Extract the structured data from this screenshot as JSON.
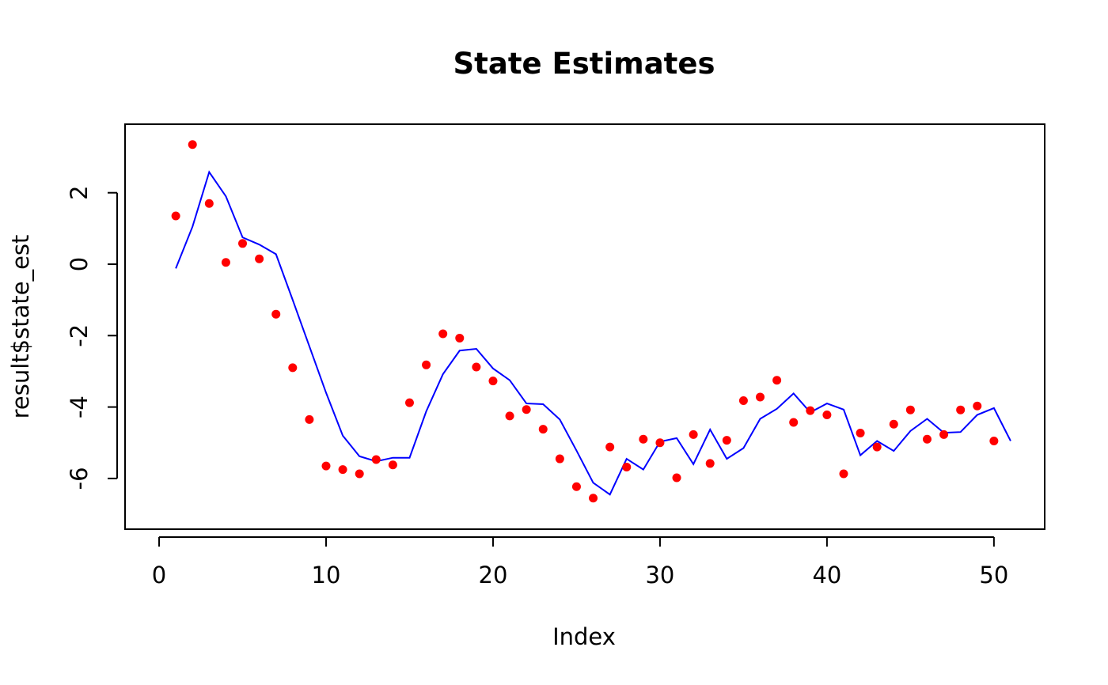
{
  "chart_data": {
    "type": "scatter",
    "title": "State Estimates",
    "xlabel": "Index",
    "ylabel": "result$state_est",
    "xlim": [
      0,
      51
    ],
    "ylim": [
      -7,
      3.5
    ],
    "x_ticks": [
      0,
      10,
      20,
      30,
      40,
      50
    ],
    "y_ticks": [
      -6,
      -4,
      -2,
      0,
      2
    ],
    "grid": false,
    "legend": "none",
    "series": [
      {
        "kind": "points",
        "color": "#ff0000",
        "x": [
          1,
          2,
          3,
          4,
          5,
          6,
          7,
          8,
          9,
          10,
          11,
          12,
          13,
          14,
          15,
          16,
          17,
          18,
          19,
          20,
          21,
          22,
          23,
          24,
          25,
          26,
          27,
          28,
          29,
          30,
          31,
          32,
          33,
          34,
          35,
          36,
          37,
          38,
          39,
          40,
          41,
          42,
          43,
          44,
          45,
          46,
          47,
          48,
          49,
          50
        ],
        "values": [
          1.35,
          3.35,
          1.7,
          0.05,
          0.58,
          0.15,
          -1.4,
          -2.9,
          -4.35,
          -5.65,
          -5.75,
          -5.87,
          -5.47,
          -5.62,
          -3.88,
          -2.82,
          -1.95,
          -2.07,
          -2.88,
          -3.27,
          -4.25,
          -4.07,
          -4.62,
          -5.45,
          -6.23,
          -6.55,
          -5.12,
          -5.68,
          -4.9,
          -5.0,
          -5.98,
          -4.77,
          -5.58,
          -4.93,
          -3.82,
          -3.72,
          -3.25,
          -4.43,
          -4.1,
          -4.22,
          -5.87,
          -4.73,
          -5.12,
          -4.48,
          -4.08,
          -4.9,
          -4.77,
          -4.08,
          -3.97,
          -4.95
        ]
      },
      {
        "kind": "line",
        "color": "#0000ff",
        "x": [
          1,
          2,
          3,
          4,
          5,
          6,
          7,
          8,
          9,
          10,
          11,
          12,
          13,
          14,
          15,
          16,
          17,
          18,
          19,
          20,
          21,
          22,
          23,
          24,
          25,
          26,
          27,
          28,
          29,
          30,
          31,
          32,
          33,
          34,
          35,
          36,
          37,
          38,
          39,
          40,
          41,
          42,
          43,
          44,
          45,
          46,
          47,
          48,
          49,
          50,
          51
        ],
        "values": [
          -0.12,
          1.05,
          2.58,
          1.9,
          0.75,
          0.55,
          0.28,
          -1.0,
          -2.3,
          -3.6,
          -4.8,
          -5.38,
          -5.52,
          -5.42,
          -5.42,
          -4.12,
          -3.08,
          -2.42,
          -2.37,
          -2.92,
          -3.25,
          -3.9,
          -3.92,
          -4.35,
          -5.22,
          -6.12,
          -6.45,
          -5.45,
          -5.75,
          -4.97,
          -4.87,
          -5.6,
          -4.63,
          -5.45,
          -5.15,
          -4.33,
          -4.05,
          -3.62,
          -4.15,
          -3.9,
          -4.07,
          -5.35,
          -4.95,
          -5.23,
          -4.67,
          -4.33,
          -4.72,
          -4.7,
          -4.22,
          -4.03,
          -4.95
        ]
      }
    ]
  }
}
